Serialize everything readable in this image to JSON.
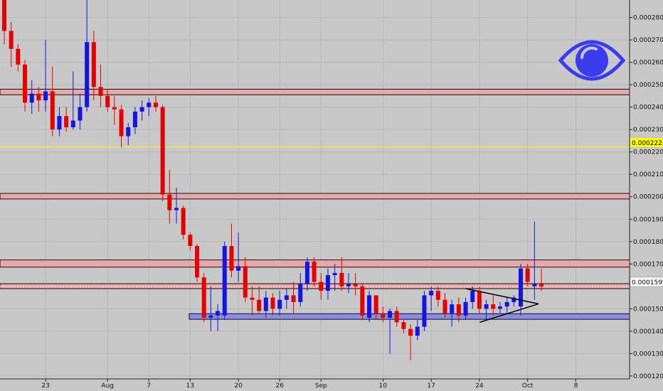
{
  "chart_data": {
    "type": "candlestick",
    "title": "",
    "xlabel": "",
    "ylabel": "",
    "ylim": [
      0.0001187,
      0.0002878
    ],
    "y_ticks": [
      "0.0002800",
      "0.0002700",
      "0.0002600",
      "0.0002500",
      "0.0002400",
      "0.0002300",
      "0.0002200",
      "0.0002100",
      "0.0002000",
      "0.0001900",
      "0.0001800",
      "0.0001700",
      "0.0001500",
      "0.0001400",
      "0.0001300",
      "0.0001200"
    ],
    "x_ticks": [
      {
        "label": "23",
        "date": "Jul 23"
      },
      {
        "label": "Aug",
        "date": "Aug 1"
      },
      {
        "label": "7",
        "date": "Aug 7"
      },
      {
        "label": "13",
        "date": "Aug 13"
      },
      {
        "label": "20",
        "date": "Aug 20"
      },
      {
        "label": "26",
        "date": "Aug 26"
      },
      {
        "label": "Sep",
        "date": "Sep 1"
      },
      {
        "label": "10",
        "date": "Sep 10"
      },
      {
        "label": "17",
        "date": "Sep 17"
      },
      {
        "label": "24",
        "date": "Sep 24"
      },
      {
        "label": "Oct",
        "date": "Oct 1"
      },
      {
        "label": "8",
        "date": "Oct 8"
      }
    ],
    "current_price": "0.0001599",
    "marked_price": "0.0002222",
    "colors": {
      "up": "#1414e6",
      "down": "#e60000",
      "resistance_fill": "#e8a8a8",
      "support_fill": "#8c8ce6",
      "marker_line": "#ffff00",
      "icon": "#3b3bf0",
      "background": "#c8c8c8"
    },
    "icon": "eye-icon",
    "zones": [
      {
        "kind": "resistance",
        "top": 0.000248,
        "bottom": 0.0002455
      },
      {
        "kind": "resistance",
        "top": 0.0002015,
        "bottom": 0.000199
      },
      {
        "kind": "resistance",
        "top": 0.0001718,
        "bottom": 0.0001686
      },
      {
        "kind": "resistance",
        "top": 0.0001612,
        "bottom": 0.000159
      },
      {
        "kind": "support",
        "top": 0.0001478,
        "bottom": 0.0001453
      }
    ],
    "triangle": {
      "from_date": "Sep 22",
      "to_date": "Sep 30",
      "upper": [
        0.000159,
        0.0001522
      ],
      "lower": [
        0.000144,
        0.0001522
      ]
    },
    "candles_note": "open, high, low, close; one candle per day",
    "candles": [
      {
        "date": "Jul 17",
        "o": 0.000288,
        "h": 0.000288,
        "l": 0.000268,
        "c": 0.000274
      },
      {
        "date": "Jul 18",
        "o": 0.000274,
        "h": 0.000278,
        "l": 0.000258,
        "c": 0.000266
      },
      {
        "date": "Jul 19",
        "o": 0.000266,
        "h": 0.000268,
        "l": 0.000256,
        "c": 0.000259
      },
      {
        "date": "Jul 20",
        "o": 0.000259,
        "h": 0.000261,
        "l": 0.000238,
        "c": 0.000242
      },
      {
        "date": "Jul 21",
        "o": 0.000242,
        "h": 0.000252,
        "l": 0.000237,
        "c": 0.000246
      },
      {
        "date": "Jul 22",
        "o": 0.000246,
        "h": 0.000249,
        "l": 0.000238,
        "c": 0.000243
      },
      {
        "date": "Jul 23",
        "o": 0.000243,
        "h": 0.00027,
        "l": 0.000238,
        "c": 0.000247
      },
      {
        "date": "Jul 24",
        "o": 0.000247,
        "h": 0.000258,
        "l": 0.000227,
        "c": 0.00023
      },
      {
        "date": "Jul 25",
        "o": 0.00023,
        "h": 0.00024,
        "l": 0.000227,
        "c": 0.000236
      },
      {
        "date": "Jul 26",
        "o": 0.000236,
        "h": 0.00024,
        "l": 0.000229,
        "c": 0.000231
      },
      {
        "date": "Jul 27",
        "o": 0.000231,
        "h": 0.000256,
        "l": 0.00023,
        "c": 0.000234
      },
      {
        "date": "Jul 28",
        "o": 0.000234,
        "h": 0.000246,
        "l": 0.00023,
        "c": 0.00024
      },
      {
        "date": "Jul 29",
        "o": 0.00024,
        "h": 0.000288,
        "l": 0.000238,
        "c": 0.000269
      },
      {
        "date": "Jul 30",
        "o": 0.000269,
        "h": 0.000274,
        "l": 0.000243,
        "c": 0.000249
      },
      {
        "date": "Jul 31",
        "o": 0.000249,
        "h": 0.000259,
        "l": 0.00024,
        "c": 0.000245
      },
      {
        "date": "Aug 1",
        "o": 0.000245,
        "h": 0.000248,
        "l": 0.000238,
        "c": 0.00024
      },
      {
        "date": "Aug 2",
        "o": 0.00024,
        "h": 0.000245,
        "l": 0.000232,
        "c": 0.000239
      },
      {
        "date": "Aug 3",
        "o": 0.000239,
        "h": 0.000241,
        "l": 0.000222,
        "c": 0.000227
      },
      {
        "date": "Aug 4",
        "o": 0.000227,
        "h": 0.000233,
        "l": 0.000223,
        "c": 0.000231
      },
      {
        "date": "Aug 5",
        "o": 0.000231,
        "h": 0.00024,
        "l": 0.000228,
        "c": 0.000238
      },
      {
        "date": "Aug 6",
        "o": 0.000238,
        "h": 0.000243,
        "l": 0.000234,
        "c": 0.00024
      },
      {
        "date": "Aug 7",
        "o": 0.00024,
        "h": 0.000244,
        "l": 0.000236,
        "c": 0.000242
      },
      {
        "date": "Aug 8",
        "o": 0.000242,
        "h": 0.000245,
        "l": 0.000238,
        "c": 0.00024
      },
      {
        "date": "Aug 9",
        "o": 0.00024,
        "h": 0.000241,
        "l": 0.000198,
        "c": 0.000201
      },
      {
        "date": "Aug 10",
        "o": 0.000201,
        "h": 0.000212,
        "l": 0.000188,
        "c": 0.000194
      },
      {
        "date": "Aug 11",
        "o": 0.000194,
        "h": 0.000204,
        "l": 0.000188,
        "c": 0.000195
      },
      {
        "date": "Aug 12",
        "o": 0.000195,
        "h": 0.000196,
        "l": 0.000181,
        "c": 0.000183
      },
      {
        "date": "Aug 13",
        "o": 0.000183,
        "h": 0.000184,
        "l": 0.000176,
        "c": 0.000178
      },
      {
        "date": "Aug 14",
        "o": 0.000178,
        "h": 0.000179,
        "l": 0.000162,
        "c": 0.000164
      },
      {
        "date": "Aug 15",
        "o": 0.000164,
        "h": 0.000166,
        "l": 0.000144,
        "c": 0.000146
      },
      {
        "date": "Aug 16",
        "o": 0.000146,
        "h": 0.00016,
        "l": 0.00014,
        "c": 0.000147
      },
      {
        "date": "Aug 17",
        "o": 0.000147,
        "h": 0.000152,
        "l": 0.00014,
        "c": 0.000149
      },
      {
        "date": "Aug 18",
        "o": 0.000147,
        "h": 0.00018,
        "l": 0.000145,
        "c": 0.000178
      },
      {
        "date": "Aug 19",
        "o": 0.000178,
        "h": 0.000188,
        "l": 0.000164,
        "c": 0.000167
      },
      {
        "date": "Aug 20",
        "o": 0.000167,
        "h": 0.000184,
        "l": 0.000162,
        "c": 0.000169
      },
      {
        "date": "Aug 21",
        "o": 0.000169,
        "h": 0.000173,
        "l": 0.000153,
        "c": 0.000155
      },
      {
        "date": "Aug 22",
        "o": 0.000155,
        "h": 0.00016,
        "l": 0.000147,
        "c": 0.000154
      },
      {
        "date": "Aug 23",
        "o": 0.000154,
        "h": 0.00016,
        "l": 0.000148,
        "c": 0.000149
      },
      {
        "date": "Aug 24",
        "o": 0.000149,
        "h": 0.000158,
        "l": 0.000146,
        "c": 0.000155
      },
      {
        "date": "Aug 25",
        "o": 0.000155,
        "h": 0.000157,
        "l": 0.000147,
        "c": 0.00015
      },
      {
        "date": "Aug 26",
        "o": 0.00015,
        "h": 0.000158,
        "l": 0.000147,
        "c": 0.000154
      },
      {
        "date": "Aug 27",
        "o": 0.000154,
        "h": 0.000159,
        "l": 0.00015,
        "c": 0.000156
      },
      {
        "date": "Aug 28",
        "o": 0.000156,
        "h": 0.000162,
        "l": 0.000148,
        "c": 0.000153
      },
      {
        "date": "Aug 29",
        "o": 0.000153,
        "h": 0.000166,
        "l": 0.000151,
        "c": 0.000161
      },
      {
        "date": "Aug 30",
        "o": 0.000161,
        "h": 0.000173,
        "l": 0.000158,
        "c": 0.000171
      },
      {
        "date": "Aug 31",
        "o": 0.000171,
        "h": 0.000173,
        "l": 0.00016,
        "c": 0.000162
      },
      {
        "date": "Sep 1",
        "o": 0.000162,
        "h": 0.000166,
        "l": 0.000154,
        "c": 0.000158
      },
      {
        "date": "Sep 2",
        "o": 0.000158,
        "h": 0.000168,
        "l": 0.000154,
        "c": 0.000165
      },
      {
        "date": "Sep 3",
        "o": 0.000165,
        "h": 0.00017,
        "l": 0.000158,
        "c": 0.000166
      },
      {
        "date": "Sep 4",
        "o": 0.000166,
        "h": 0.000173,
        "l": 0.000158,
        "c": 0.00016
      },
      {
        "date": "Sep 5",
        "o": 0.00016,
        "h": 0.000166,
        "l": 0.000157,
        "c": 0.000161
      },
      {
        "date": "Sep 6",
        "o": 0.000161,
        "h": 0.000166,
        "l": 0.000156,
        "c": 0.00016
      },
      {
        "date": "Sep 7",
        "o": 0.00016,
        "h": 0.000161,
        "l": 0.000145,
        "c": 0.000147
      },
      {
        "date": "Sep 8",
        "o": 0.000146,
        "h": 0.000158,
        "l": 0.000144,
        "c": 0.000156
      },
      {
        "date": "Sep 9",
        "o": 0.000156,
        "h": 0.000156,
        "l": 0.000145,
        "c": 0.000148
      },
      {
        "date": "Sep 10",
        "o": 0.000148,
        "h": 0.000151,
        "l": 0.000144,
        "c": 0.000146
      },
      {
        "date": "Sep 11",
        "o": 0.000146,
        "h": 0.00015,
        "l": 0.00013,
        "c": 0.000149
      },
      {
        "date": "Sep 12",
        "o": 0.000149,
        "h": 0.000151,
        "l": 0.000142,
        "c": 0.000144
      },
      {
        "date": "Sep 13",
        "o": 0.000144,
        "h": 0.000145,
        "l": 0.000139,
        "c": 0.000141
      },
      {
        "date": "Sep 14",
        "o": 0.000141,
        "h": 0.000143,
        "l": 0.000127,
        "c": 0.000138
      },
      {
        "date": "Sep 15",
        "o": 0.000138,
        "h": 0.000145,
        "l": 0.000136,
        "c": 0.000142
      },
      {
        "date": "Sep 16",
        "o": 0.000142,
        "h": 0.000158,
        "l": 0.00014,
        "c": 0.000156
      },
      {
        "date": "Sep 17",
        "o": 0.000156,
        "h": 0.00016,
        "l": 0.000149,
        "c": 0.000158
      },
      {
        "date": "Sep 18",
        "o": 0.000158,
        "h": 0.00016,
        "l": 0.000151,
        "c": 0.000154
      },
      {
        "date": "Sep 19",
        "o": 0.000154,
        "h": 0.000157,
        "l": 0.000146,
        "c": 0.000148
      },
      {
        "date": "Sep 20",
        "o": 0.000148,
        "h": 0.000154,
        "l": 0.000142,
        "c": 0.000152
      },
      {
        "date": "Sep 21",
        "o": 0.000152,
        "h": 0.000155,
        "l": 0.000144,
        "c": 0.000147
      },
      {
        "date": "Sep 22",
        "o": 0.000147,
        "h": 0.000155,
        "l": 0.000145,
        "c": 0.000153
      },
      {
        "date": "Sep 23",
        "o": 0.000153,
        "h": 0.00016,
        "l": 0.00015,
        "c": 0.000158
      },
      {
        "date": "Sep 24",
        "o": 0.000158,
        "h": 0.00016,
        "l": 0.000148,
        "c": 0.00015
      },
      {
        "date": "Sep 25",
        "o": 0.00015,
        "h": 0.000154,
        "l": 0.000145,
        "c": 0.000152
      },
      {
        "date": "Sep 26",
        "o": 0.000152,
        "h": 0.000156,
        "l": 0.000147,
        "c": 0.00015
      },
      {
        "date": "Sep 27",
        "o": 0.00015,
        "h": 0.000153,
        "l": 0.000148,
        "c": 0.000151
      },
      {
        "date": "Sep 28",
        "o": 0.000151,
        "h": 0.000155,
        "l": 0.000148,
        "c": 0.000153
      },
      {
        "date": "Sep 29",
        "o": 0.000153,
        "h": 0.000156,
        "l": 0.000151,
        "c": 0.000155
      },
      {
        "date": "Sep 30",
        "o": 0.000151,
        "h": 0.00017,
        "l": 0.000147,
        "c": 0.000168
      },
      {
        "date": "Oct 1",
        "o": 0.000168,
        "h": 0.00017,
        "l": 0.00016,
        "c": 0.000162
      },
      {
        "date": "Oct 2",
        "o": 0.00016,
        "h": 0.000189,
        "l": 0.000154,
        "c": 0.000161
      },
      {
        "date": "Oct 3",
        "o": 0.000161,
        "h": 0.000168,
        "l": 0.000158,
        "c": 0.0001599
      }
    ]
  }
}
